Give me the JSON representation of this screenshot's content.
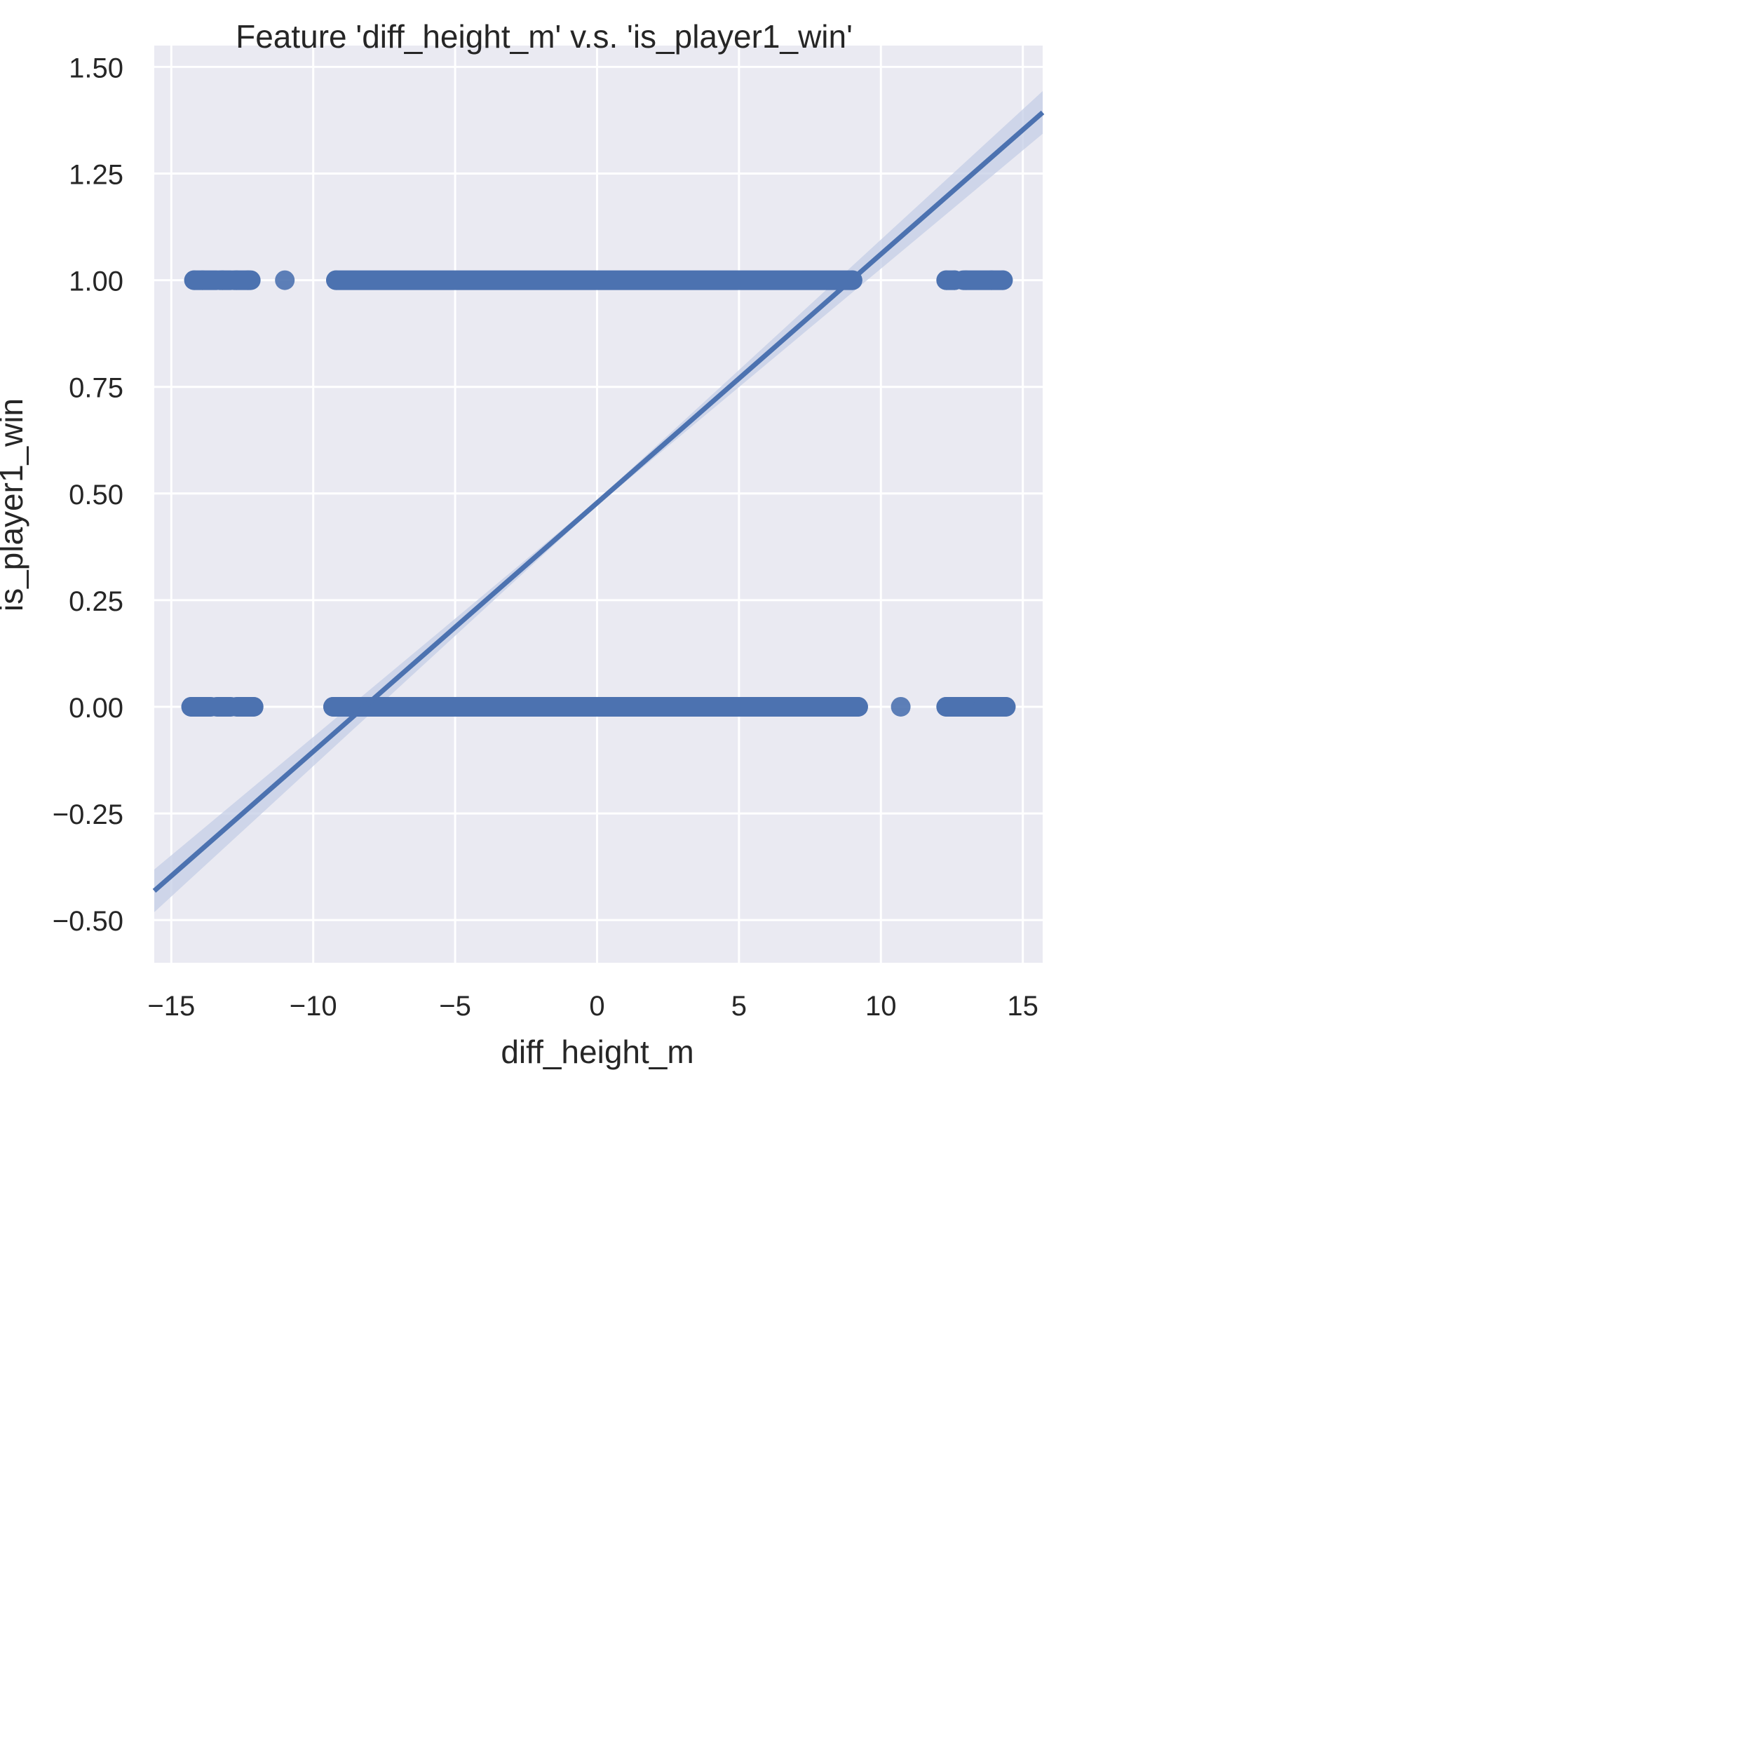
{
  "chart_data": {
    "type": "scatter",
    "title": "Feature 'diff_height_m' v.s. 'is_player1_win'",
    "xlabel": "diff_height_m",
    "ylabel": "is_player1_win",
    "xlim": [
      -15.6,
      15.7
    ],
    "ylim": [
      -0.6,
      1.55
    ],
    "xticks": [
      -15,
      -10,
      -5,
      0,
      5,
      10,
      15
    ],
    "xtick_labels": [
      "−15",
      "−10",
      "−5",
      "0",
      "5",
      "10",
      "15"
    ],
    "yticks": [
      -0.5,
      -0.25,
      0,
      0.25,
      0.5,
      0.75,
      1.0,
      1.25,
      1.5
    ],
    "ytick_labels": [
      "−0.50",
      "−0.25",
      "0.00",
      "0.25",
      "0.50",
      "0.75",
      "1.00",
      "1.25",
      "1.50"
    ],
    "grid": true,
    "series": [
      {
        "y": 1,
        "segments": [
          [
            -14.2,
            -13.4
          ],
          [
            -13.3,
            -12.9
          ],
          [
            -12.8,
            -12.2
          ],
          [
            -9.2,
            9.0
          ],
          [
            12.3,
            12.6
          ],
          [
            12.9,
            14.3
          ]
        ],
        "points": [
          -14.2,
          -13.9,
          -13.2,
          -12.7,
          -12.3,
          -11.0,
          -9.2,
          9.0,
          12.3,
          12.6,
          13.0,
          13.9,
          14.3
        ]
      },
      {
        "y": 0,
        "segments": [
          [
            -14.3,
            -13.6
          ],
          [
            -13.4,
            -12.9
          ],
          [
            -12.7,
            -12.1
          ],
          [
            -9.3,
            9.2
          ],
          [
            12.3,
            14.4
          ]
        ],
        "points": [
          -14.3,
          -13.8,
          -13.1,
          -12.6,
          -12.2,
          -12.1,
          -9.3,
          9.2,
          10.7,
          12.3,
          12.7,
          13.6,
          14.4
        ]
      }
    ],
    "regression": {
      "x_range": [
        -15.6,
        15.7
      ],
      "intercept": 0.478,
      "slope": 0.0583,
      "ci_halfwidth_at_ends": 0.05
    },
    "colors": {
      "points": "#4c72b0",
      "line": "#4c72b0",
      "band": "#c4cde6",
      "background": "#eaeaf2",
      "grid": "#ffffff"
    }
  }
}
